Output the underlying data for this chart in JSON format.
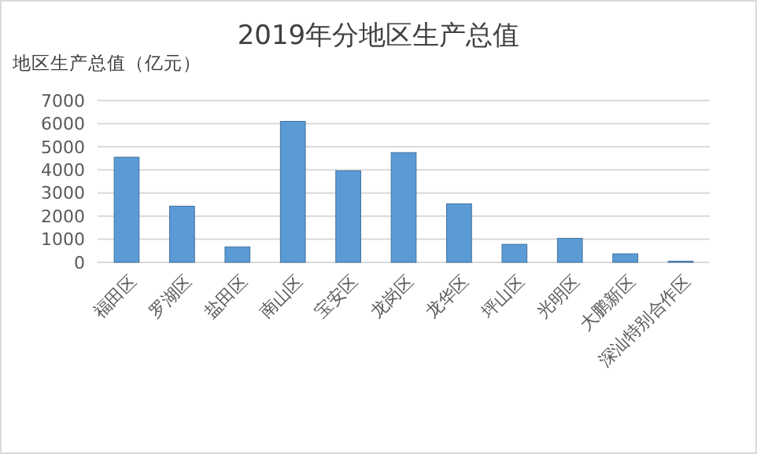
{
  "chart_data": {
    "type": "bar",
    "title": "2019年分地区生产总值",
    "ylabel": "地区生产总值（亿元）",
    "categories": [
      "福田区",
      "罗湖区",
      "盐田区",
      "南山区",
      "宝安区",
      "龙岗区",
      "龙华区",
      "坪山区",
      "光明区",
      "大鹏新区",
      "深汕特别合作区"
    ],
    "values": [
      4550,
      2430,
      670,
      6100,
      3960,
      4750,
      2530,
      780,
      1040,
      370,
      50
    ],
    "color": "#5b9bd5",
    "ylim": [
      0,
      7000
    ],
    "yticks": [
      0,
      1000,
      2000,
      3000,
      4000,
      5000,
      6000,
      7000
    ],
    "grid": true
  }
}
